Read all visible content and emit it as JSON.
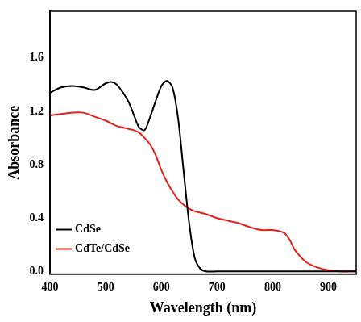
{
  "chart_data": {
    "type": "line",
    "x_label": "Wavelength (nm)",
    "y_label": "Absorbance",
    "x": [
      400,
      420,
      440,
      460,
      480,
      500,
      510,
      520,
      540,
      550,
      560,
      570,
      580,
      590,
      600,
      610,
      620,
      630,
      640,
      650,
      660,
      670,
      680,
      700,
      720,
      740,
      760,
      780,
      800,
      820,
      830,
      840,
      860,
      880,
      900,
      920,
      950
    ],
    "series": [
      {
        "name": "CdSe",
        "color": "#000000",
        "values": [
          1.34,
          1.38,
          1.39,
          1.38,
          1.36,
          1.41,
          1.42,
          1.4,
          1.28,
          1.18,
          1.08,
          1.06,
          1.16,
          1.28,
          1.39,
          1.43,
          1.38,
          1.15,
          0.75,
          0.36,
          0.1,
          0.02,
          0.0,
          0.0,
          0.0,
          0.0,
          0.0,
          0.0,
          0.0,
          0.0,
          0.0,
          0.0,
          0.0,
          0.0,
          0.0,
          0.0,
          0.0
        ]
      },
      {
        "name": "CdTe/CdSe",
        "color": "#e8201c",
        "values": [
          1.17,
          1.18,
          1.19,
          1.19,
          1.16,
          1.13,
          1.11,
          1.09,
          1.07,
          1.06,
          1.04,
          1.0,
          0.95,
          0.87,
          0.76,
          0.67,
          0.6,
          0.54,
          0.5,
          0.47,
          0.45,
          0.44,
          0.43,
          0.4,
          0.38,
          0.36,
          0.33,
          0.31,
          0.31,
          0.29,
          0.24,
          0.16,
          0.07,
          0.03,
          0.01,
          0.0,
          0.0
        ]
      }
    ],
    "xlim": [
      400,
      950
    ],
    "xticks": [
      400,
      500,
      600,
      700,
      800,
      900
    ],
    "ylim": [
      -0.02,
      1.95
    ],
    "yticks": [
      {
        "value": 0,
        "label": "0.0"
      },
      0.4,
      0.8,
      1.2,
      1.6
    ],
    "legend": "top-right",
    "grid": false
  }
}
